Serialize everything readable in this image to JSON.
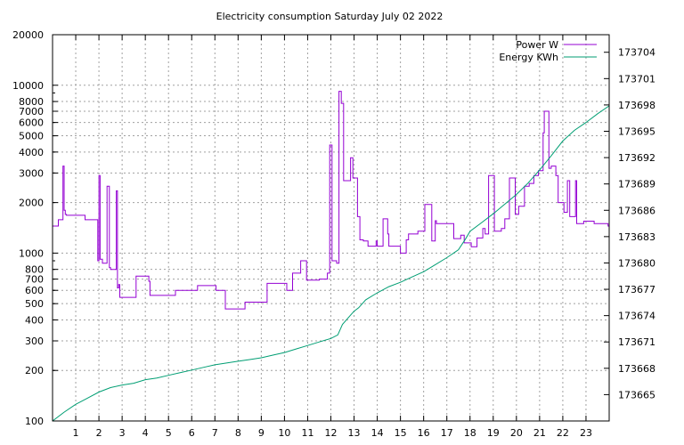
{
  "chart_data": {
    "type": "line",
    "title": "Electricity consumption Saturday July 02 2022",
    "x_ticks": [
      "1",
      "2",
      "3",
      "4",
      "5",
      "6",
      "7",
      "8",
      "9",
      "10",
      "11",
      "12",
      "13",
      "14",
      "15",
      "16",
      "17",
      "18",
      "19",
      "20",
      "21",
      "22",
      "23"
    ],
    "xlim": [
      0,
      24
    ],
    "y_left": {
      "scale": "log",
      "ylim": [
        100,
        20000
      ],
      "ticks": [
        "100",
        "200",
        "300",
        "400",
        "500",
        "600",
        "700",
        "800",
        "1000",
        "2000",
        "3000",
        "4000",
        "5000",
        "6000",
        "7000",
        "8000",
        "10000",
        "20000"
      ]
    },
    "y_right": {
      "scale": "linear",
      "ylim": [
        173662,
        173706
      ],
      "ticks": [
        "173665",
        "173668",
        "173671",
        "173674",
        "173677",
        "173680",
        "173683",
        "173686",
        "173689",
        "173692",
        "173695",
        "173698",
        "173701",
        "173704"
      ]
    },
    "grid": true,
    "legend_position": "top-right",
    "series": [
      {
        "name": "Power W",
        "color": "#9400d3",
        "axis": "left",
        "style": "steps",
        "x": [
          0,
          0.25,
          0.45,
          0.5,
          0.55,
          0.6,
          1.4,
          1.95,
          2.0,
          2.05,
          2.15,
          2.35,
          2.45,
          2.5,
          2.75,
          2.8,
          2.85,
          2.9,
          3.5,
          3.6,
          4.15,
          4.2,
          5.2,
          5.3,
          6.1,
          6.25,
          7.05,
          7.45,
          8.3,
          9.0,
          9.25,
          10.1,
          10.35,
          10.55,
          10.7,
          10.95,
          11.5,
          11.85,
          11.95,
          12.05,
          12.25,
          12.35,
          12.45,
          12.55,
          12.85,
          12.95,
          13.15,
          13.25,
          13.4,
          13.6,
          13.95,
          14.0,
          14.25,
          14.45,
          14.5,
          14.85,
          15.0,
          15.25,
          15.35,
          15.75,
          16.05,
          16.35,
          16.5,
          16.55,
          17.05,
          17.3,
          17.6,
          17.75,
          18.05,
          18.3,
          18.55,
          18.65,
          18.8,
          19.05,
          19.35,
          19.5,
          19.7,
          19.95,
          20.1,
          20.35,
          20.55,
          20.75,
          20.95,
          21.15,
          21.2,
          21.4,
          21.5,
          21.7,
          21.8,
          22.05,
          22.2,
          22.3,
          22.55,
          22.6,
          22.9,
          23.35,
          23.6,
          23.95
        ],
        "y": [
          1450,
          1580,
          3300,
          1800,
          1700,
          1680,
          1580,
          900,
          2900,
          920,
          870,
          2500,
          820,
          800,
          2350,
          620,
          650,
          545,
          545,
          730,
          680,
          560,
          560,
          600,
          600,
          640,
          600,
          465,
          510,
          510,
          660,
          600,
          760,
          760,
          900,
          690,
          700,
          760,
          4400,
          900,
          870,
          9200,
          7800,
          2700,
          3700,
          2800,
          1650,
          1200,
          1180,
          1100,
          1180,
          1100,
          1600,
          1300,
          1100,
          1100,
          1000,
          1200,
          1300,
          1350,
          1950,
          1180,
          1560,
          1500,
          1500,
          1220,
          1280,
          1150,
          1090,
          1230,
          1400,
          1300,
          2900,
          1350,
          1400,
          1600,
          2800,
          1700,
          1900,
          2500,
          2600,
          2900,
          3100,
          5200,
          7000,
          3200,
          3300,
          2900,
          2000,
          1750,
          2700,
          1650,
          2700,
          1500,
          1550,
          1500,
          1500,
          1450
        ]
      },
      {
        "name": "Energy KWh",
        "color": "#009e73",
        "axis": "right",
        "style": "line",
        "x": [
          0,
          0.5,
          1,
          1.5,
          2,
          2.5,
          3,
          3.5,
          4,
          4.5,
          5,
          5.5,
          6,
          6.5,
          7,
          7.5,
          8,
          8.5,
          9,
          9.5,
          10,
          10.5,
          11,
          11.5,
          12,
          12.3,
          12.5,
          12.8,
          13,
          13.2,
          13.5,
          14,
          14.5,
          15,
          15.5,
          16,
          16.5,
          17,
          17.5,
          17.8,
          18,
          18.5,
          19,
          19.5,
          20,
          20.5,
          21,
          21.5,
          22,
          22.5,
          23,
          23.5,
          24
        ],
        "y": [
          173662,
          173663,
          173663.9,
          173664.6,
          173665.3,
          173665.8,
          173666.1,
          173666.3,
          173666.7,
          173666.9,
          173667.2,
          173667.5,
          173667.8,
          173668.1,
          173668.4,
          173668.6,
          173668.8,
          173669,
          173669.2,
          173669.5,
          173669.8,
          173670.2,
          173670.6,
          173671,
          173671.4,
          173671.8,
          173673,
          173673.9,
          173674.5,
          173674.9,
          173675.8,
          173676.6,
          173677.3,
          173677.8,
          173678.4,
          173679,
          173679.8,
          173680.6,
          173681.5,
          173682.7,
          173683.6,
          173684.6,
          173685.6,
          173686.7,
          173687.8,
          173689.1,
          173690.6,
          173692.2,
          173693.9,
          173695.1,
          173696,
          173697,
          173697.9
        ]
      }
    ]
  }
}
